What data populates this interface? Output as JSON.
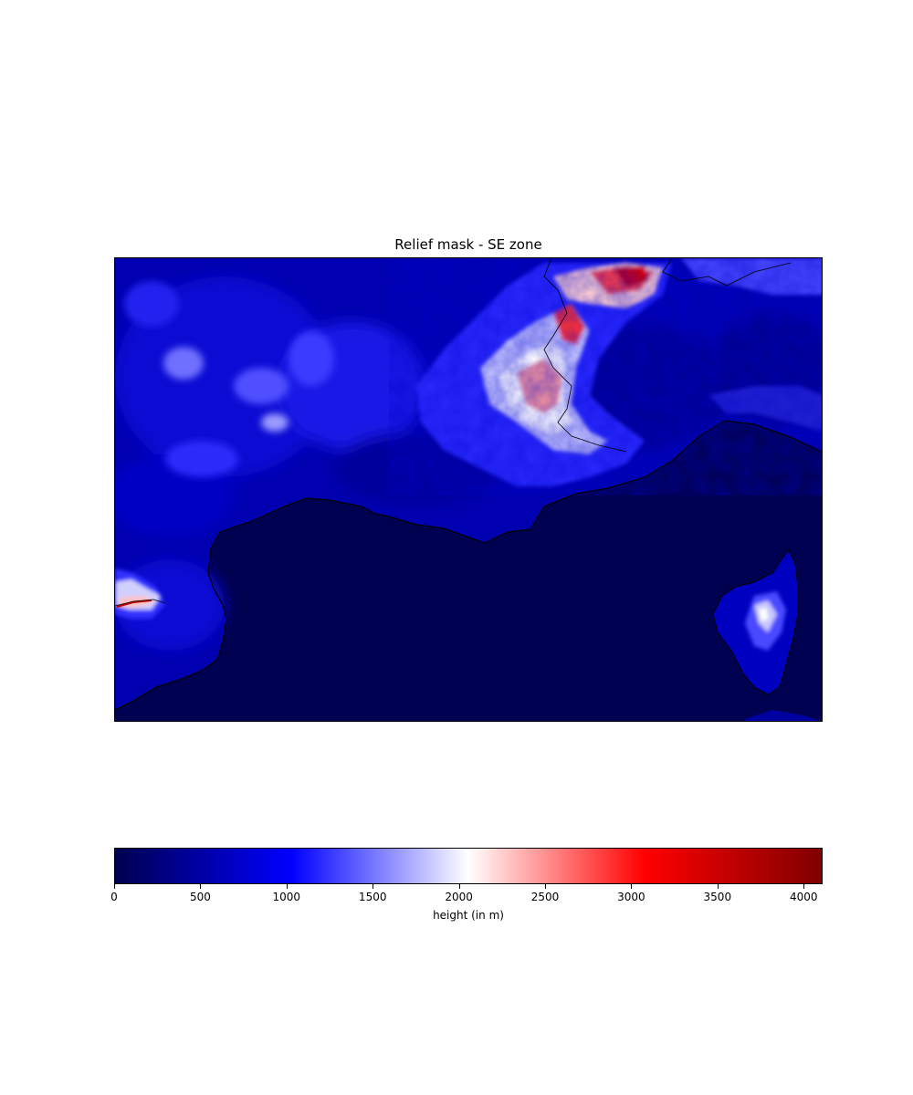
{
  "title": "Relief mask - SE zone",
  "colorbar": {
    "label": "height (in m)",
    "ticks": [
      "0",
      "500",
      "1000",
      "1500",
      "2000",
      "2500",
      "3000",
      "3500",
      "4000"
    ],
    "tick_values": [
      0,
      500,
      1000,
      1500,
      2000,
      2500,
      3000,
      3500,
      4000
    ],
    "vmin": 0,
    "vmax": 4110,
    "colormap": "seismic",
    "stops": [
      "#000050",
      "#0000ff",
      "#ffffff",
      "#ff0000",
      "#800000"
    ]
  },
  "map": {
    "sea_color": "#000050",
    "coastline_color": "#000000",
    "border_color": "#000000"
  }
}
